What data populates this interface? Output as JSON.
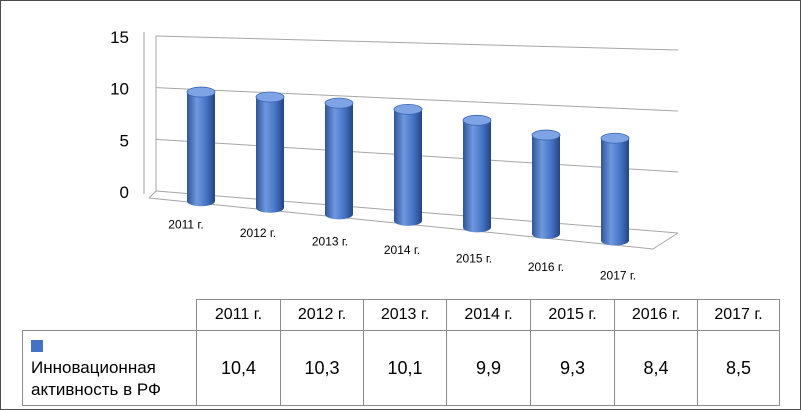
{
  "chart_data": {
    "type": "bar",
    "style": "3d-cylinder",
    "categories": [
      "2011 г.",
      "2012 г.",
      "2013 г.",
      "2014 г.",
      "2015 г.",
      "2016 г.",
      "2017 г."
    ],
    "series": [
      {
        "name": "Инновационная активность в РФ",
        "values_text": [
          "10,4",
          "10,3",
          "10,1",
          "9,9",
          "9,3",
          "8,4",
          "8,5"
        ],
        "values": [
          10.4,
          10.3,
          10.1,
          9.9,
          9.3,
          8.4,
          8.5
        ],
        "color": "#4472c4"
      }
    ],
    "y_ticks": [
      "0",
      "5",
      "10",
      "15"
    ],
    "ylim": [
      0,
      15
    ],
    "grid": true,
    "legend": "data-table"
  }
}
